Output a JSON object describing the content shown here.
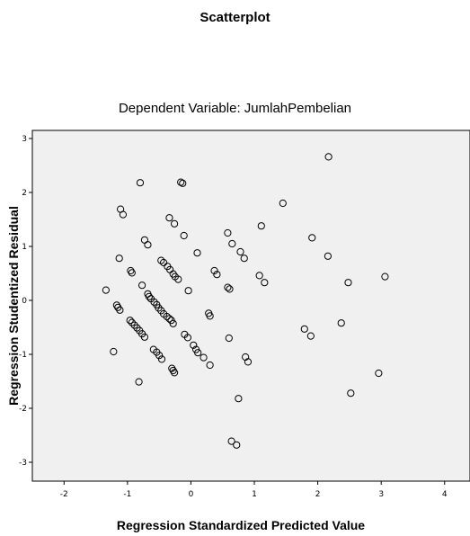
{
  "chart_data": {
    "type": "scatter",
    "title": "Scatterplot",
    "subtitle": "Dependent Variable: JumlahPembelian",
    "xlabel": "Regression Standardized Predicted Value",
    "ylabel": "Regression Studentized Residual",
    "xlim": [
      -2.5,
      4.4
    ],
    "ylim": [
      -3.35,
      3.15
    ],
    "xticks": [
      "-2",
      "-1",
      "0",
      "1",
      "2",
      "3",
      "4"
    ],
    "yticks": [
      "3",
      "2",
      "1",
      "0",
      "-1",
      "-2",
      "-3"
    ],
    "plot_background": "#f0f0f0",
    "marker_color": "#000000",
    "grid": false,
    "points": [
      [
        -1.34,
        0.19
      ],
      [
        -1.22,
        -0.95
      ],
      [
        -1.17,
        -0.09
      ],
      [
        -1.15,
        -0.13
      ],
      [
        -1.12,
        -0.18
      ],
      [
        -1.13,
        0.78
      ],
      [
        -1.11,
        1.69
      ],
      [
        -1.07,
        1.59
      ],
      [
        -0.95,
        0.55
      ],
      [
        -0.93,
        0.51
      ],
      [
        -0.96,
        -0.37
      ],
      [
        -0.93,
        -0.41
      ],
      [
        -0.89,
        -0.46
      ],
      [
        -0.85,
        -0.51
      ],
      [
        -0.81,
        -0.56
      ],
      [
        -0.82,
        -1.51
      ],
      [
        -0.8,
        2.18
      ],
      [
        -0.77,
        0.28
      ],
      [
        -0.77,
        -0.62
      ],
      [
        -0.73,
        -0.68
      ],
      [
        -0.73,
        1.12
      ],
      [
        -0.68,
        1.03
      ],
      [
        -0.68,
        0.12
      ],
      [
        -0.66,
        0.07
      ],
      [
        -0.63,
        0.03
      ],
      [
        -0.58,
        -0.03
      ],
      [
        -0.54,
        -0.08
      ],
      [
        -0.51,
        -0.14
      ],
      [
        -0.47,
        -0.19
      ],
      [
        -0.43,
        -0.25
      ],
      [
        -0.38,
        -0.3
      ],
      [
        -0.34,
        -0.34
      ],
      [
        -0.31,
        -0.37
      ],
      [
        -0.28,
        -0.43
      ],
      [
        -0.59,
        -0.91
      ],
      [
        -0.54,
        -0.96
      ],
      [
        -0.5,
        -1.02
      ],
      [
        -0.46,
        -1.09
      ],
      [
        -0.47,
        0.74
      ],
      [
        -0.43,
        0.7
      ],
      [
        -0.37,
        0.63
      ],
      [
        -0.33,
        0.57
      ],
      [
        -0.28,
        0.49
      ],
      [
        -0.25,
        0.44
      ],
      [
        -0.2,
        0.39
      ],
      [
        -0.34,
        1.53
      ],
      [
        -0.26,
        1.42
      ],
      [
        -0.3,
        -1.26
      ],
      [
        -0.28,
        -1.3
      ],
      [
        -0.26,
        -1.34
      ],
      [
        -0.16,
        2.19
      ],
      [
        -0.13,
        2.17
      ],
      [
        -0.11,
        1.2
      ],
      [
        -0.1,
        -0.63
      ],
      [
        -0.05,
        -0.69
      ],
      [
        -0.04,
        0.18
      ],
      [
        0.04,
        -0.83
      ],
      [
        0.08,
        -0.91
      ],
      [
        0.11,
        -0.97
      ],
      [
        0.1,
        0.88
      ],
      [
        0.2,
        -1.06
      ],
      [
        0.3,
        -1.2
      ],
      [
        0.28,
        -0.24
      ],
      [
        0.3,
        -0.29
      ],
      [
        0.37,
        0.55
      ],
      [
        0.41,
        0.48
      ],
      [
        0.58,
        1.25
      ],
      [
        0.58,
        0.24
      ],
      [
        0.61,
        0.21
      ],
      [
        0.6,
        -0.7
      ],
      [
        0.65,
        1.05
      ],
      [
        0.64,
        -2.61
      ],
      [
        0.72,
        -2.68
      ],
      [
        0.75,
        -1.82
      ],
      [
        0.78,
        0.9
      ],
      [
        0.84,
        0.78
      ],
      [
        0.86,
        -1.05
      ],
      [
        0.9,
        -1.14
      ],
      [
        1.08,
        0.46
      ],
      [
        1.11,
        1.38
      ],
      [
        1.16,
        0.33
      ],
      [
        1.45,
        1.8
      ],
      [
        1.79,
        -0.53
      ],
      [
        1.89,
        -0.66
      ],
      [
        1.91,
        1.16
      ],
      [
        2.16,
        0.82
      ],
      [
        2.17,
        2.66
      ],
      [
        2.37,
        -0.42
      ],
      [
        2.48,
        0.33
      ],
      [
        2.52,
        -1.72
      ],
      [
        2.96,
        -1.35
      ],
      [
        3.06,
        0.44
      ]
    ]
  }
}
